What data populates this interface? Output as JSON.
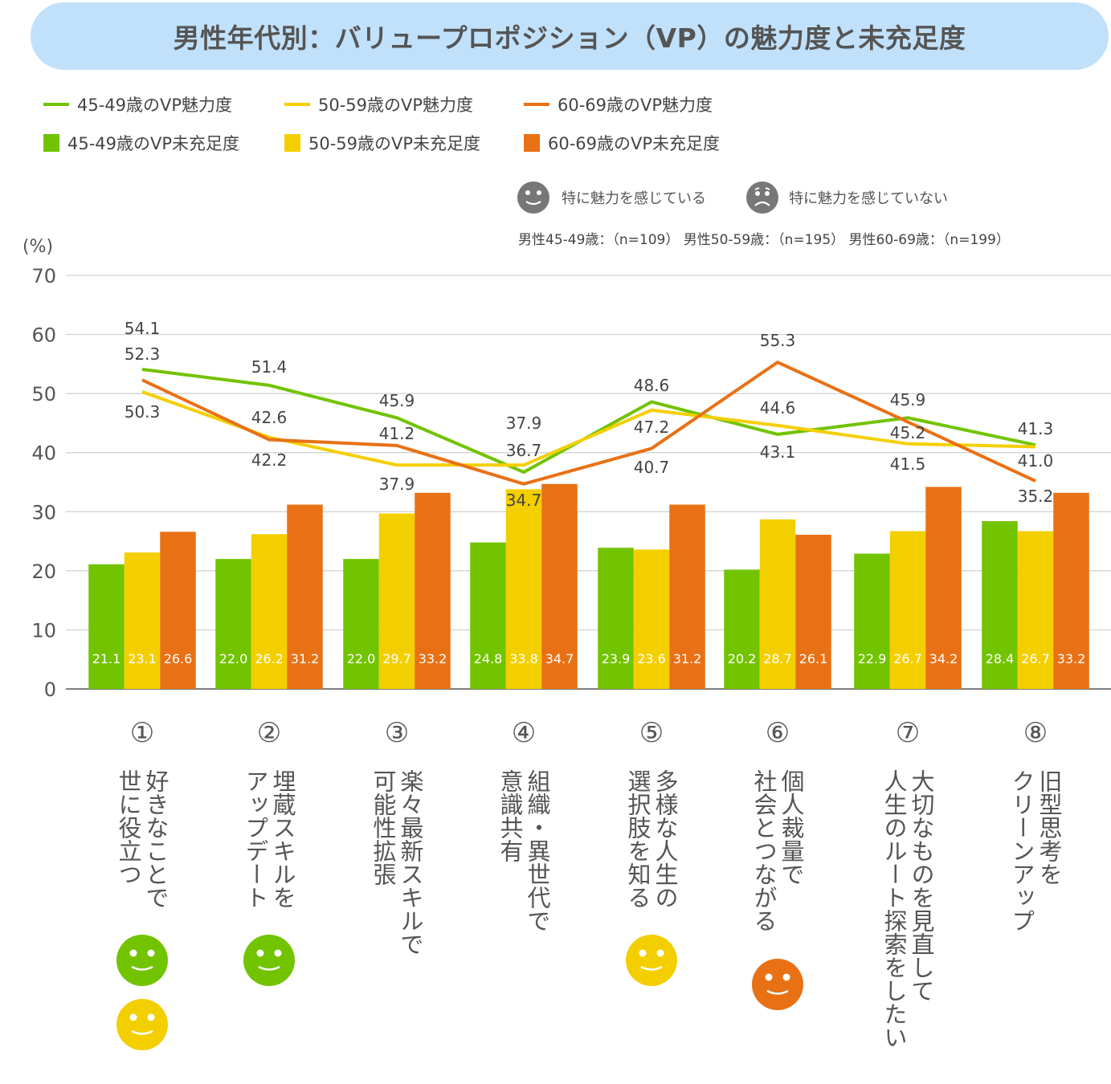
{
  "header": {
    "title": "男性年代別：バリュープロポジション（VP）の魅力度と未充足度"
  },
  "legend": {
    "lines": [
      {
        "label": "45-49歳のVP魅力度",
        "color": "#72c300"
      },
      {
        "label": "50-59歳のVP魅力度",
        "color": "#f4cf00"
      },
      {
        "label": "60-69歳のVP魅力度",
        "color": "#e87115"
      }
    ],
    "bars": [
      {
        "label": "45-49歳のVP未充足度",
        "color": "#72c300"
      },
      {
        "label": "50-59歳のVP未充足度",
        "color": "#f4cf00"
      },
      {
        "label": "60-69歳のVP未充足度",
        "color": "#e87115"
      }
    ]
  },
  "face_legend": {
    "positive": {
      "icon": "smiley-face-icon",
      "label": "特に魅力を感じている"
    },
    "negative": {
      "icon": "sad-face-icon",
      "label": "特に魅力を感じていない"
    }
  },
  "sample_sizes": "男性45-49歳：（n=109） 男性50-59歳：（n=195） 男性60-69歳：（n=199）",
  "categories": [
    {
      "num": "①",
      "label": "好きなことで\n世に役立つ",
      "faces": [
        "#72c300",
        "#f4cf00"
      ]
    },
    {
      "num": "②",
      "label": "埋蔵スキルを\nアップデート",
      "faces": [
        "#72c300"
      ]
    },
    {
      "num": "③",
      "label": "楽々最新スキルで\n可能性拡張",
      "faces": []
    },
    {
      "num": "④",
      "label": "組織・異世代で\n意識共有",
      "faces": []
    },
    {
      "num": "⑤",
      "label": "多様な人生の\n選択肢を知る",
      "faces": [
        "#f4cf00"
      ]
    },
    {
      "num": "⑥",
      "label": "個人裁量で\n社会とつながる",
      "faces": [
        "#e87115"
      ]
    },
    {
      "num": "⑦",
      "label": "大切なものを見直して\n人生のルート探索をしたい",
      "faces": []
    },
    {
      "num": "⑧",
      "label": "旧型思考を\nクリーンアップ",
      "faces": []
    }
  ],
  "chart_data": {
    "type": "bar",
    "title": "男性年代別：バリュープロポジション（VP）の魅力度と未充足度",
    "xlabel": "",
    "ylabel": "(%)",
    "ylim": [
      0,
      70
    ],
    "yticks": [
      0,
      10,
      20,
      30,
      40,
      50,
      60,
      70
    ],
    "grid": true,
    "legend_position": "top-left",
    "categories": [
      "①",
      "②",
      "③",
      "④",
      "⑤",
      "⑥",
      "⑦",
      "⑧"
    ],
    "bar_series": [
      {
        "name": "45-49歳のVP未充足度",
        "color": "#72c300",
        "values": [
          21.1,
          22.0,
          22.0,
          24.8,
          23.9,
          20.2,
          22.9,
          28.4
        ]
      },
      {
        "name": "50-59歳のVP未充足度",
        "color": "#f4cf00",
        "values": [
          23.1,
          26.2,
          29.7,
          33.8,
          23.6,
          28.7,
          26.7,
          26.7
        ]
      },
      {
        "name": "60-69歳のVP未充足度",
        "color": "#e87115",
        "values": [
          26.6,
          31.2,
          33.2,
          34.7,
          31.2,
          26.1,
          34.2,
          33.2
        ]
      }
    ],
    "line_series": [
      {
        "name": "45-49歳のVP魅力度",
        "color": "#72c300",
        "values": [
          54.1,
          51.4,
          45.9,
          36.7,
          48.6,
          43.1,
          45.9,
          41.3
        ]
      },
      {
        "name": "50-59歳のVP魅力度",
        "color": "#f4cf00",
        "values": [
          50.3,
          42.6,
          37.9,
          37.9,
          47.2,
          44.6,
          41.5,
          41.0
        ]
      },
      {
        "name": "60-69歳のVP魅力度",
        "color": "#e87115",
        "values": [
          52.3,
          42.2,
          41.2,
          34.7,
          40.7,
          55.3,
          45.2,
          35.2
        ]
      }
    ],
    "line_label_layout": [
      [
        54.1,
        52.3,
        50.3
      ],
      [
        51.4,
        42.6,
        42.2
      ],
      [
        45.9,
        41.2,
        37.9
      ],
      [
        37.9,
        36.7,
        34.7
      ],
      [
        48.6,
        47.2,
        40.7
      ],
      [
        55.3,
        44.6,
        43.1
      ],
      [
        45.9,
        45.2,
        41.5
      ],
      [
        41.3,
        41.0,
        35.2
      ]
    ]
  }
}
